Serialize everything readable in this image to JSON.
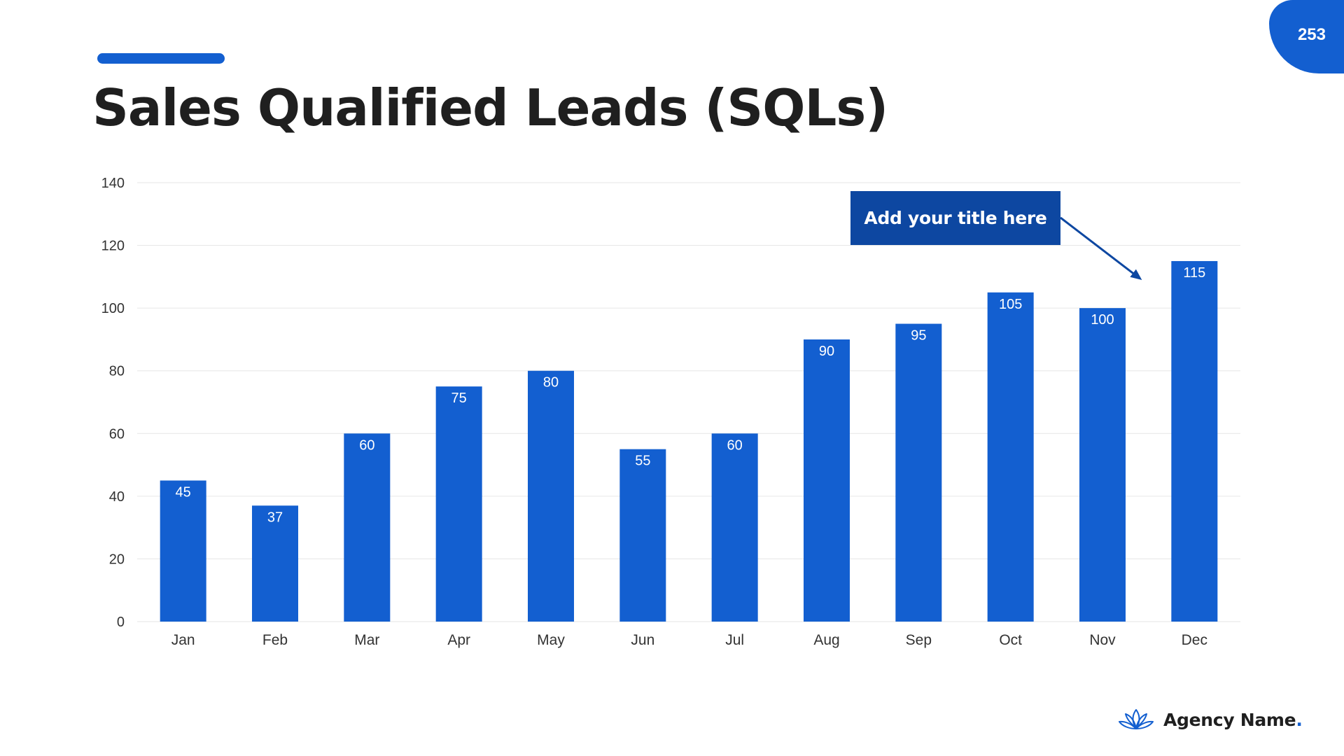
{
  "slide": {
    "title": "Sales Qualified Leads (SQLs)",
    "page_number": "253",
    "brand_name": "Agency Name",
    "brand_dot": ".",
    "logo_icon": "lotus-icon"
  },
  "callout": {
    "text": "Add your title here",
    "points_to": "Dec"
  },
  "colors": {
    "accent": "#135fd0",
    "callout": "#0d47a1",
    "grid": "#e6e6e6",
    "text": "#1f1f1f"
  },
  "chart_data": {
    "type": "bar",
    "categories": [
      "Jan",
      "Feb",
      "Mar",
      "Apr",
      "May",
      "Jun",
      "Jul",
      "Aug",
      "Sep",
      "Oct",
      "Nov",
      "Dec"
    ],
    "values": [
      45,
      37,
      60,
      75,
      80,
      55,
      60,
      90,
      95,
      105,
      100,
      115
    ],
    "yticks": [
      0,
      20,
      40,
      60,
      80,
      100,
      120,
      140
    ],
    "ylim": [
      0,
      140
    ],
    "grid": true,
    "data_labels": true,
    "legend": "none",
    "bar_color": "#135fd0"
  }
}
